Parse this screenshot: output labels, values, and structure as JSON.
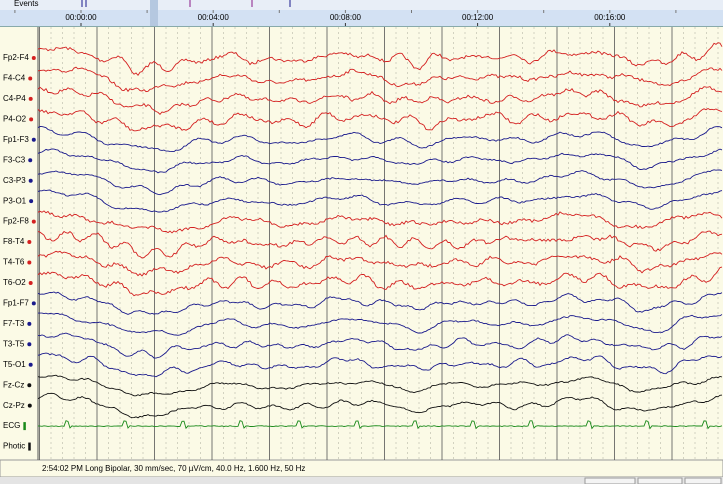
{
  "events_label": "Events",
  "timeline": {
    "ticks": [
      "00:00:00",
      "00:04:00",
      "00:08:00",
      "00:12:00",
      "00:16:00"
    ]
  },
  "channels": [
    {
      "label": "Fp2-F4",
      "color": "#d42020",
      "marker": "dot"
    },
    {
      "label": "F4-C4",
      "color": "#d42020",
      "marker": "dot"
    },
    {
      "label": "C4-P4",
      "color": "#d42020",
      "marker": "dot"
    },
    {
      "label": "P4-O2",
      "color": "#d42020",
      "marker": "dot"
    },
    {
      "label": "Fp1-F3",
      "color": "#1a1a8c",
      "marker": "dot"
    },
    {
      "label": "F3-C3",
      "color": "#1a1a8c",
      "marker": "dot"
    },
    {
      "label": "C3-P3",
      "color": "#1a1a8c",
      "marker": "dot"
    },
    {
      "label": "P3-O1",
      "color": "#1a1a8c",
      "marker": "dot"
    },
    {
      "label": "Fp2-F8",
      "color": "#d42020",
      "marker": "dot"
    },
    {
      "label": "F8-T4",
      "color": "#d42020",
      "marker": "dot"
    },
    {
      "label": "T4-T6",
      "color": "#d42020",
      "marker": "dot"
    },
    {
      "label": "T6-O2",
      "color": "#d42020",
      "marker": "dot"
    },
    {
      "label": "Fp1-F7",
      "color": "#1a1a8c",
      "marker": "dot"
    },
    {
      "label": "F7-T3",
      "color": "#1a1a8c",
      "marker": "dot"
    },
    {
      "label": "T3-T5",
      "color": "#1a1a8c",
      "marker": "dot"
    },
    {
      "label": "T5-O1",
      "color": "#1a1a8c",
      "marker": "dot"
    },
    {
      "label": "Fz-Cz",
      "color": "#111111",
      "marker": "dot"
    },
    {
      "label": "Cz-Pz",
      "color": "#111111",
      "marker": "dot"
    },
    {
      "label": "ECG",
      "color": "#1a8a1a",
      "marker": "bar"
    },
    {
      "label": "Photic",
      "color": "#111111",
      "marker": "bar"
    }
  ],
  "status": "2:54:02 PM Long Bipolar, 30 mm/sec, 70 µV/cm, 40.0 Hz, 1.600 Hz, 50 Hz"
}
